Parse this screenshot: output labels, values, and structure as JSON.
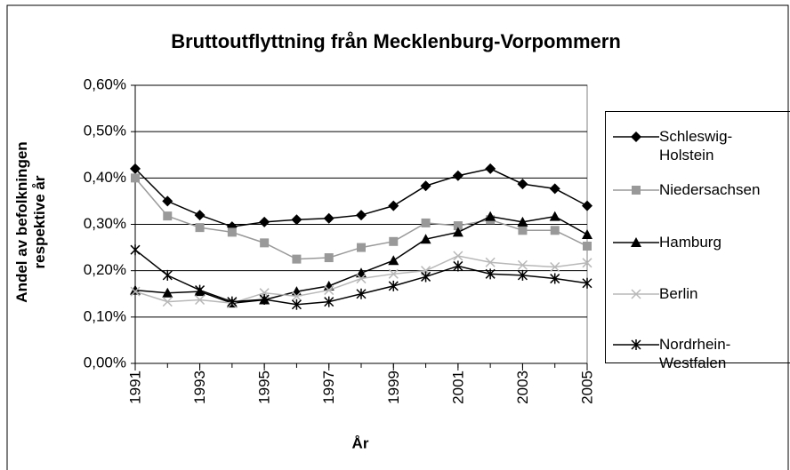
{
  "chart_data": {
    "type": "line",
    "title": "Bruttoutflyttning från Mecklenburg-Vorpommern",
    "x_label": "År",
    "y_label": "Andel av befolkningen respektive år",
    "x": [
      1991,
      1992,
      1993,
      1994,
      1995,
      1996,
      1997,
      1998,
      1999,
      2000,
      2001,
      2002,
      2003,
      2004,
      2005
    ],
    "xlim": [
      1991,
      2005
    ],
    "xticks": [
      1991,
      1993,
      1995,
      1997,
      1999,
      2001,
      2003,
      2005
    ],
    "ylim": [
      0,
      0.6
    ],
    "yticks": [
      {
        "value": 0,
        "label": "0,00%"
      },
      {
        "value": 0.1,
        "label": "0,10%"
      },
      {
        "value": 0.2,
        "label": "0,20%"
      },
      {
        "value": 0.3,
        "label": "0,30%"
      },
      {
        "value": 0.4,
        "label": "0,40%"
      },
      {
        "value": 0.5,
        "label": "0,50%"
      },
      {
        "value": 0.6,
        "label": "0,60%"
      }
    ],
    "grid": true,
    "legend": "right",
    "series": [
      {
        "name": "Schleswig-Holstein",
        "color": "#000000",
        "marker": "diamond",
        "values": [
          0.42,
          0.35,
          0.32,
          0.295,
          0.305,
          0.31,
          0.313,
          0.32,
          0.34,
          0.383,
          0.405,
          0.42,
          0.387,
          0.377,
          0.34
        ]
      },
      {
        "name": "Niedersachsen",
        "color": "#999999",
        "marker": "square",
        "values": [
          0.4,
          0.318,
          0.293,
          0.283,
          0.26,
          0.225,
          0.228,
          0.25,
          0.263,
          0.303,
          0.297,
          0.31,
          0.287,
          0.287,
          0.253
        ]
      },
      {
        "name": "Hamburg",
        "color": "#000000",
        "marker": "triangle",
        "values": [
          0.158,
          0.152,
          0.155,
          0.13,
          0.137,
          0.155,
          0.167,
          0.195,
          0.222,
          0.268,
          0.283,
          0.317,
          0.305,
          0.317,
          0.278
        ]
      },
      {
        "name": "Berlin",
        "color": "#b8b8b8",
        "marker": "x",
        "values": [
          0.155,
          0.133,
          0.137,
          0.13,
          0.152,
          0.145,
          0.158,
          0.183,
          0.193,
          0.2,
          0.232,
          0.218,
          0.212,
          0.208,
          0.217
        ]
      },
      {
        "name": "Nordrhein-Westfalen",
        "color": "#000000",
        "marker": "star",
        "values": [
          0.245,
          0.19,
          0.158,
          0.133,
          0.138,
          0.127,
          0.133,
          0.15,
          0.167,
          0.187,
          0.21,
          0.193,
          0.19,
          0.183,
          0.173
        ]
      }
    ]
  }
}
